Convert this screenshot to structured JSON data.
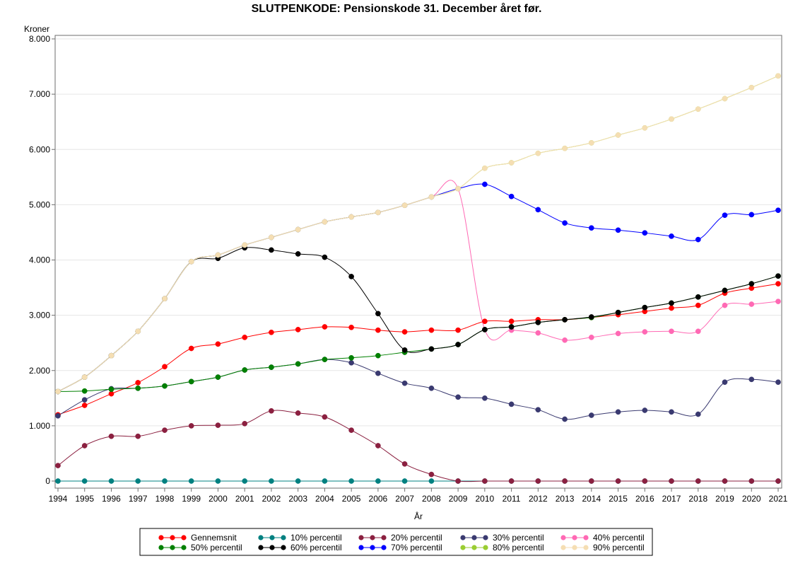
{
  "chart_data": {
    "type": "line",
    "title": "SLUTPENKODE: Pensionskode 31. December året før.",
    "xlabel": "År",
    "ylabel": "Kroner",
    "xlim": [
      1994,
      2021
    ],
    "ylim": [
      0,
      8000
    ],
    "x": [
      1994,
      1995,
      1996,
      1997,
      1998,
      1999,
      2000,
      2001,
      2002,
      2003,
      2004,
      2005,
      2006,
      2007,
      2008,
      2009,
      2010,
      2011,
      2012,
      2013,
      2014,
      2015,
      2016,
      2017,
      2018,
      2019,
      2020,
      2021
    ],
    "x_tick_labels": [
      "1994",
      "1995",
      "1996",
      "1997",
      "1998",
      "1999",
      "2000",
      "2001",
      "2002",
      "2003",
      "2004",
      "2005",
      "2006",
      "2007",
      "2008",
      "2009",
      "2010",
      "2011",
      "2012",
      "2013",
      "2014",
      "2015",
      "2016",
      "2017",
      "2018",
      "2019",
      "2020",
      "2021"
    ],
    "y_ticks": [
      0,
      1000,
      2000,
      3000,
      4000,
      5000,
      6000,
      7000,
      8000
    ],
    "y_tick_labels": [
      "0",
      "1.000",
      "2.000",
      "3.000",
      "4.000",
      "5.000",
      "6.000",
      "7.000",
      "8.000"
    ],
    "grid": true,
    "legend_position": "bottom",
    "series": [
      {
        "name": "Gennemsnit",
        "color": "#ff0000",
        "values": [
          1200,
          1370,
          1580,
          1780,
          2070,
          2400,
          2480,
          2600,
          2690,
          2740,
          2790,
          2780,
          2730,
          2700,
          2730,
          2730,
          2890,
          2890,
          2920,
          2920,
          2960,
          3010,
          3070,
          3130,
          3180,
          3400,
          3490,
          3570
        ]
      },
      {
        "name": "10% percentil",
        "color": "#008080",
        "values": [
          0,
          0,
          0,
          0,
          0,
          0,
          0,
          0,
          0,
          0,
          0,
          0,
          0,
          0,
          0,
          0,
          0,
          0,
          0,
          0,
          0,
          0,
          0,
          0,
          0,
          0,
          0,
          0
        ]
      },
      {
        "name": "20% percentil",
        "color": "#8b2040",
        "values": [
          280,
          640,
          810,
          810,
          920,
          1000,
          1010,
          1040,
          1270,
          1230,
          1160,
          920,
          640,
          310,
          120,
          0,
          0,
          0,
          0,
          0,
          0,
          0,
          0,
          0,
          0,
          0,
          0,
          0
        ]
      },
      {
        "name": "30% percentil",
        "color": "#3a3a70",
        "values": [
          1180,
          1470,
          1670,
          1680,
          1720,
          1800,
          1880,
          2010,
          2060,
          2120,
          2200,
          2140,
          1950,
          1770,
          1680,
          1520,
          1500,
          1390,
          1290,
          1120,
          1190,
          1250,
          1280,
          1250,
          1210,
          1790,
          1840,
          1790
        ]
      },
      {
        "name": "40% percentil",
        "color": "#ff69b4",
        "values": [
          1620,
          1880,
          2270,
          2710,
          3300,
          3970,
          4090,
          4270,
          4410,
          4550,
          4690,
          4780,
          4860,
          4990,
          5140,
          5290,
          2740,
          2730,
          2680,
          2550,
          2600,
          2670,
          2700,
          2710,
          2710,
          3180,
          3200,
          3250
        ]
      },
      {
        "name": "50% percentil",
        "color": "#008000",
        "values": [
          1620,
          1630,
          1660,
          1680,
          1720,
          1800,
          1880,
          2010,
          2060,
          2120,
          2200,
          2230,
          2270,
          2330,
          2390,
          2470,
          2740,
          2790,
          2870,
          2920,
          2960,
          3050,
          3140,
          3220,
          3330,
          3450,
          3570,
          3710
        ]
      },
      {
        "name": "60% percentil",
        "color": "#000000",
        "values": [
          1620,
          1880,
          2270,
          2710,
          3300,
          3970,
          4030,
          4220,
          4180,
          4110,
          4050,
          3700,
          3030,
          2370,
          2390,
          2470,
          2740,
          2790,
          2870,
          2920,
          2970,
          3050,
          3140,
          3220,
          3330,
          3450,
          3570,
          3710
        ]
      },
      {
        "name": "70% percentil",
        "color": "#0000ff",
        "values": [
          1620,
          1880,
          2270,
          2710,
          3300,
          3970,
          4090,
          4270,
          4410,
          4550,
          4690,
          4780,
          4860,
          4990,
          5140,
          5290,
          5370,
          5150,
          4910,
          4670,
          4580,
          4540,
          4490,
          4430,
          4370,
          4810,
          4820,
          4900
        ]
      },
      {
        "name": "80% percentil",
        "color": "#9acd32",
        "values": [
          1620,
          1880,
          2270,
          2710,
          3300,
          3970,
          4090,
          4270,
          4410,
          4550,
          4690,
          4780,
          4860,
          4990,
          5140,
          5290,
          5660,
          5760,
          5930,
          6020,
          6120,
          6260,
          6390,
          6550,
          6730,
          6920,
          7120,
          7330
        ]
      },
      {
        "name": "90% percentil",
        "color": "#f5deb3",
        "values": [
          1620,
          1880,
          2270,
          2710,
          3300,
          3970,
          4090,
          4270,
          4410,
          4550,
          4690,
          4780,
          4860,
          4990,
          5140,
          5290,
          5660,
          5760,
          5930,
          6020,
          6120,
          6260,
          6390,
          6550,
          6730,
          6920,
          7120,
          7330
        ]
      }
    ]
  }
}
